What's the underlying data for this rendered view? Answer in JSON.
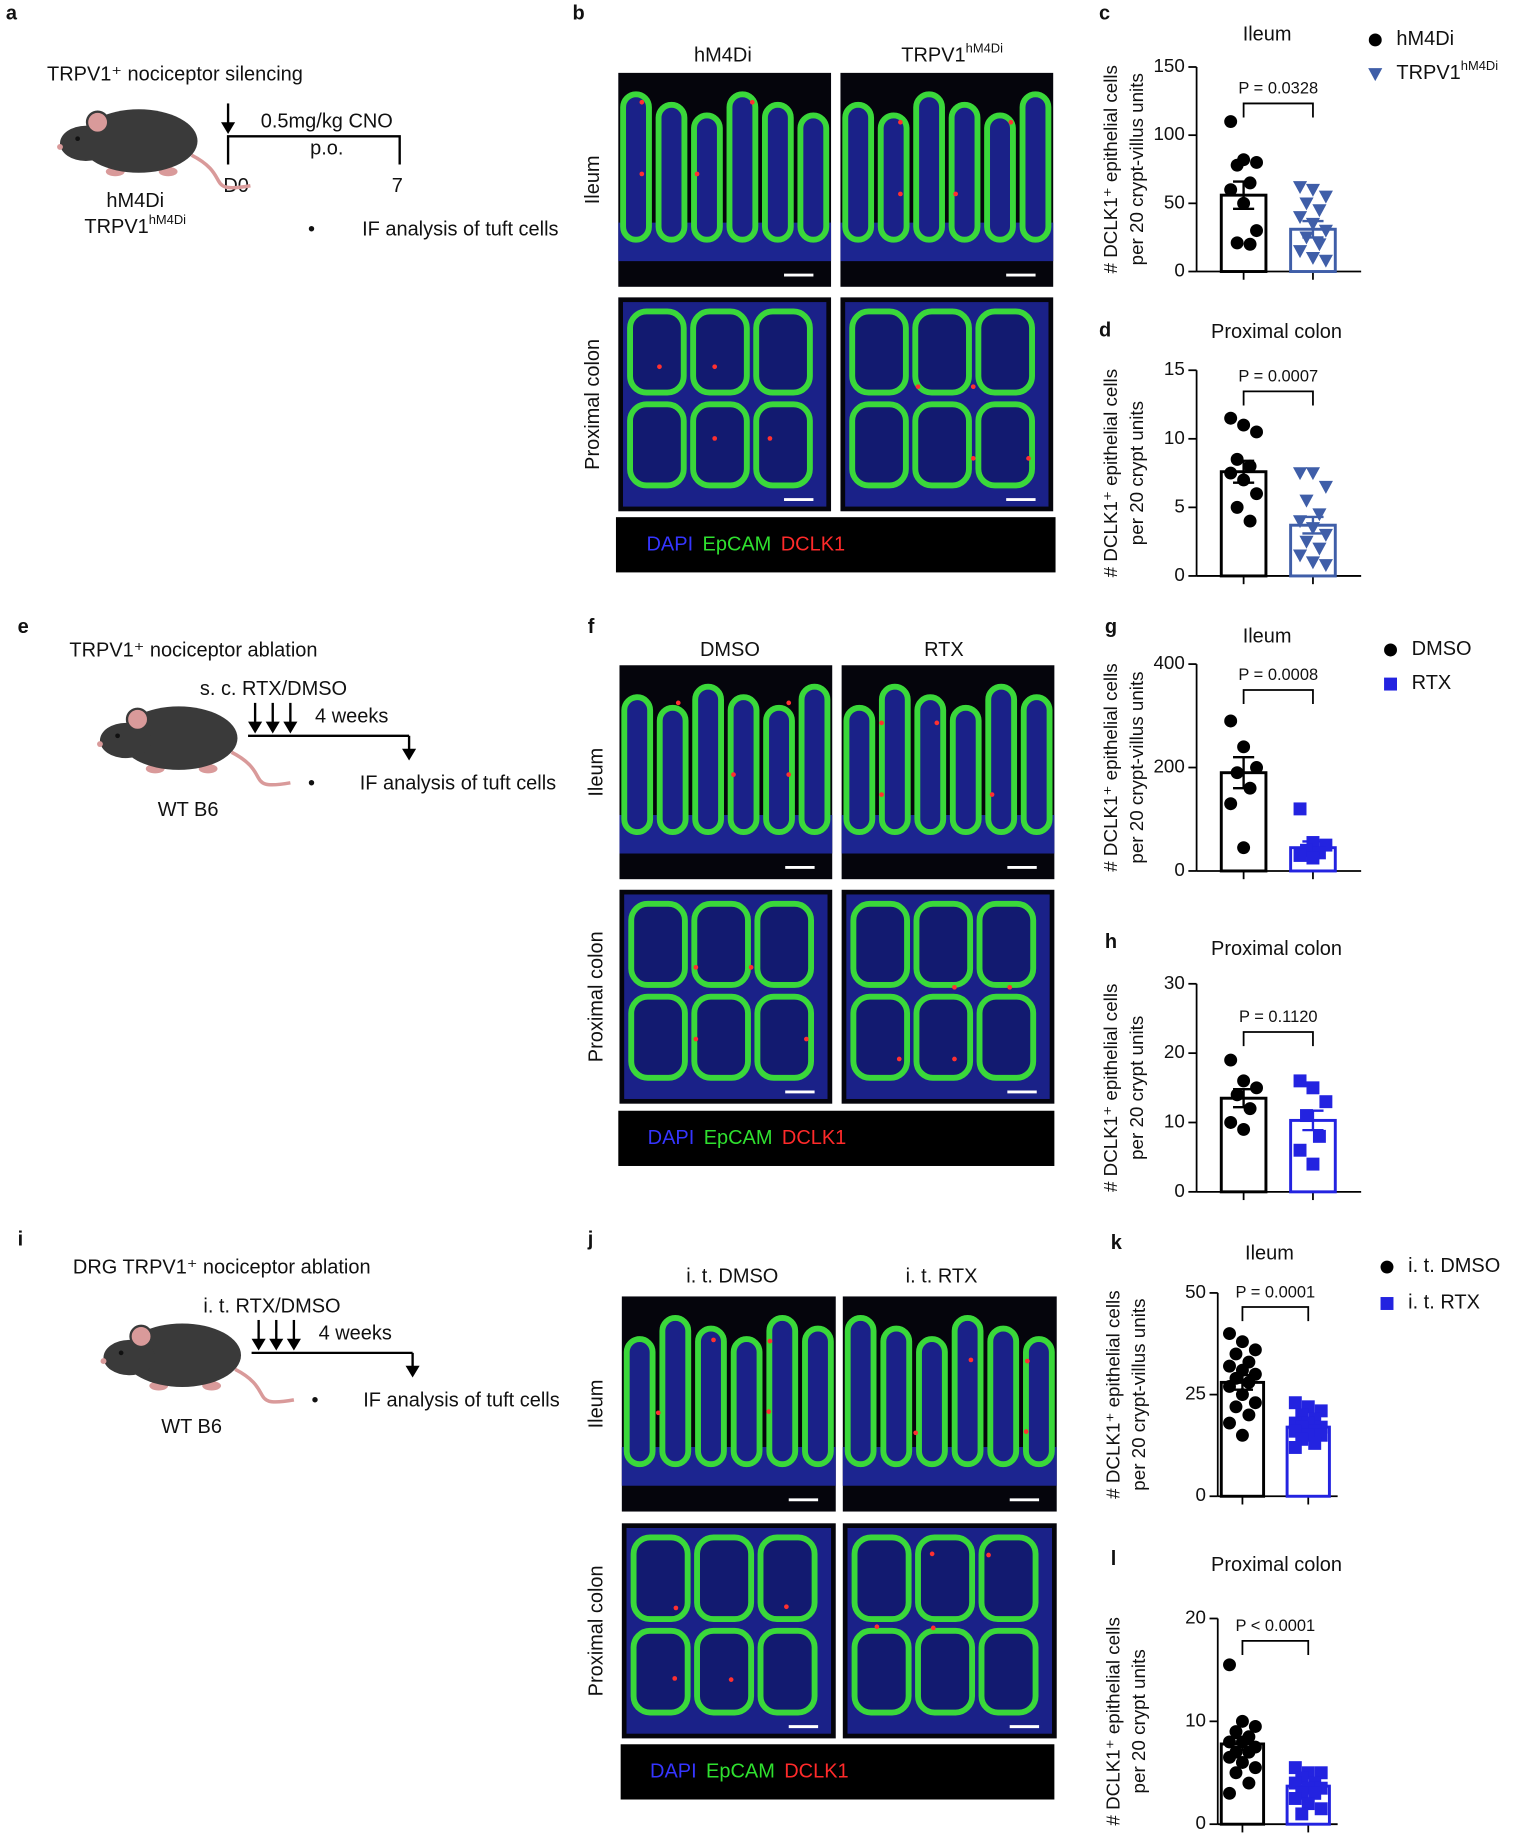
{
  "panel_letters": [
    "a",
    "b",
    "c",
    "d",
    "e",
    "f",
    "g",
    "h",
    "i",
    "j",
    "k",
    "l"
  ],
  "schemes": [
    {
      "title": "TRPV1⁺ nociceptor silencing",
      "color": "#3f5ea8",
      "treatment": [
        "0.5mg/kg CNO",
        "p.o."
      ],
      "days": [
        "D0",
        "7"
      ],
      "mice": [
        {
          "text": "hM4Di"
        },
        {
          "text": "TRPV1",
          "sup": "hM4Di"
        }
      ],
      "bullet": "•",
      "readout": "IF analysis of tuft cells"
    },
    {
      "title": "TRPV1⁺ nociceptor ablation",
      "color": "#2b2bd0",
      "treatment": [
        "s. c. RTX/DMSO"
      ],
      "duration": "4 weeks",
      "mice": [
        {
          "text": "WT B6"
        }
      ],
      "bullet": "•",
      "readout": "IF analysis of tuft cells"
    },
    {
      "title": "DRG TRPV1⁺ nociceptor ablation",
      "color": "#2b2bd0",
      "treatment": [
        "i. t. RTX/DMSO"
      ],
      "duration": "4 weeks",
      "mice": [
        {
          "text": "WT B6"
        }
      ],
      "bullet": "•",
      "readout": "IF analysis of tuft cells"
    }
  ],
  "micrographs": [
    {
      "columns": [
        {
          "text": "hM4Di"
        },
        {
          "text": "TRPV1",
          "sup": "hM4Di"
        }
      ],
      "rows": [
        "Ileum",
        "Proximal colon"
      ],
      "channels": [
        {
          "name": "DAPI",
          "color": "#3535ff"
        },
        {
          "name": "EpCAM",
          "color": "#2fe02f"
        },
        {
          "name": "DCLK1",
          "color": "#ff2a2a"
        }
      ]
    },
    {
      "columns": [
        {
          "text": "DMSO"
        },
        {
          "text": "RTX"
        }
      ],
      "rows": [
        "Ileum",
        "Proximal colon"
      ],
      "channels": [
        {
          "name": "DAPI",
          "color": "#3535ff"
        },
        {
          "name": "EpCAM",
          "color": "#2fe02f"
        },
        {
          "name": "DCLK1",
          "color": "#ff2a2a"
        }
      ]
    },
    {
      "columns": [
        {
          "text": "i. t. DMSO"
        },
        {
          "text": "i. t. RTX"
        }
      ],
      "rows": [
        "Ileum",
        "Proximal colon"
      ],
      "channels": [
        {
          "name": "DAPI",
          "color": "#3535ff"
        },
        {
          "name": "EpCAM",
          "color": "#2fe02f"
        },
        {
          "name": "DCLK1",
          "color": "#ff2a2a"
        }
      ]
    }
  ],
  "chart_data": [
    {
      "type": "bar",
      "title": "Ileum",
      "ylabel": [
        "# DCLK1⁺ epithelial cells",
        "per 20 crypt-villus units"
      ],
      "ylim": [
        0,
        150
      ],
      "yticks": [
        0,
        50,
        100,
        150
      ],
      "annotation": "P = 0.0328",
      "series": [
        {
          "name": "hM4Di",
          "color": "#000000",
          "marker": "circle",
          "mean": 56,
          "sem": 10,
          "values": [
            110,
            82,
            80,
            78,
            65,
            60,
            50,
            30,
            21,
            20
          ]
        },
        {
          "name": "TRPV1",
          "sup": "hM4Di",
          "color": "#3f5ea8",
          "marker": "triangle",
          "mean": 31,
          "sem": 6,
          "values": [
            62,
            60,
            55,
            50,
            45,
            40,
            35,
            30,
            25,
            20,
            15,
            10,
            8
          ]
        }
      ]
    },
    {
      "type": "bar",
      "title": "Proximal colon",
      "ylabel": [
        "# DCLK1⁺ epithelial cells",
        "per 20 crypt units"
      ],
      "ylim": [
        0,
        15
      ],
      "yticks": [
        0,
        5,
        10,
        15
      ],
      "annotation": "P = 0.0007",
      "series": [
        {
          "color": "#000000",
          "marker": "circle",
          "mean": 7.6,
          "sem": 0.8,
          "values": [
            11.5,
            11,
            10.5,
            8.5,
            8,
            7.5,
            7,
            6,
            5,
            4
          ]
        },
        {
          "color": "#3f5ea8",
          "marker": "triangle",
          "mean": 3.7,
          "sem": 0.6,
          "values": [
            7.5,
            7.5,
            6.5,
            5.5,
            4.5,
            4,
            3.5,
            3,
            2.5,
            2,
            1.5,
            1,
            0.8
          ]
        }
      ]
    },
    {
      "type": "bar",
      "title": "Ileum",
      "ylabel": [
        "# DCLK1⁺ epithelial cells",
        "per 20 crypt-villus units"
      ],
      "ylim": [
        0,
        400
      ],
      "yticks": [
        0,
        200,
        400
      ],
      "annotation": "P = 0.0008",
      "series": [
        {
          "name": "DMSO",
          "color": "#000000",
          "marker": "circle",
          "mean": 190,
          "sem": 30,
          "values": [
            290,
            240,
            200,
            190,
            160,
            130,
            45
          ]
        },
        {
          "name": "RTX",
          "color": "#2323e0",
          "marker": "square",
          "mean": 45,
          "sem": 12,
          "values": [
            120,
            55,
            50,
            40,
            35,
            30,
            25
          ]
        }
      ]
    },
    {
      "type": "bar",
      "title": "Proximal colon",
      "ylabel": [
        "# DCLK1⁺ epithelial cells",
        "per 20 crypt units"
      ],
      "ylim": [
        0,
        30
      ],
      "yticks": [
        0,
        10,
        20,
        30
      ],
      "annotation": "P = 0.1120",
      "series": [
        {
          "color": "#000000",
          "marker": "circle",
          "mean": 13.5,
          "sem": 1.3,
          "values": [
            19,
            16,
            15,
            14,
            12,
            10,
            9
          ]
        },
        {
          "color": "#2323e0",
          "marker": "square",
          "mean": 10.3,
          "sem": 1.4,
          "values": [
            16,
            15,
            13,
            11,
            8,
            6,
            4
          ]
        }
      ]
    },
    {
      "type": "bar",
      "title": "Ileum",
      "ylabel": [
        "# DCLK1⁺ epithelial cells",
        "per 20 crypt-villus units"
      ],
      "ylim": [
        0,
        50
      ],
      "yticks": [
        0,
        25,
        50
      ],
      "annotation": "P = 0.0001",
      "series": [
        {
          "name": "i. t. DMSO",
          "color": "#000000",
          "marker": "circle",
          "mean": 28,
          "sem": 1.8,
          "values": [
            40,
            38,
            36,
            35,
            33,
            32,
            31,
            30,
            29,
            28,
            27,
            25,
            23,
            22,
            20,
            18,
            15
          ]
        },
        {
          "name": "i. t. RTX",
          "color": "#2323e0",
          "marker": "square",
          "mean": 17,
          "sem": 1,
          "values": [
            23,
            22,
            21,
            20,
            19,
            18,
            18,
            17,
            17,
            16,
            16,
            15,
            15,
            14,
            13,
            12
          ]
        }
      ]
    },
    {
      "type": "bar",
      "title": "Proximal colon",
      "ylabel": [
        "# DCLK1⁺ epithelial cells",
        "per 20 crypt units"
      ],
      "ylim": [
        0,
        20
      ],
      "yticks": [
        0,
        10,
        20
      ],
      "annotation": "P < 0.0001",
      "series": [
        {
          "color": "#000000",
          "marker": "circle",
          "mean": 7.8,
          "sem": 0.6,
          "values": [
            15.5,
            10,
            9.5,
            9,
            8.5,
            8,
            8,
            7.5,
            7,
            7,
            6.5,
            6,
            5.5,
            5,
            4,
            3
          ]
        },
        {
          "color": "#2323e0",
          "marker": "square",
          "mean": 3.7,
          "sem": 0.3,
          "values": [
            5.5,
            5,
            5,
            4.5,
            4,
            4,
            3.5,
            3.5,
            3,
            3,
            2.5,
            2,
            1.5,
            1
          ]
        }
      ]
    }
  ]
}
